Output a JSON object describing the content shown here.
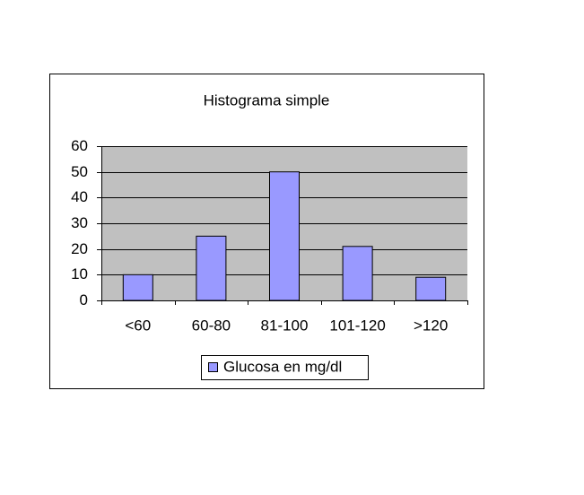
{
  "chart_data": {
    "type": "bar",
    "title": "Histograma simple",
    "categories": [
      "<60",
      "60-80",
      "81-100",
      "101-120",
      ">120"
    ],
    "series": [
      {
        "name": "Glucosa en mg/dl",
        "color": "#9999ff",
        "values": [
          10,
          25,
          50,
          21,
          9
        ]
      }
    ],
    "ylim": [
      0,
      60
    ],
    "yticks": [
      0,
      10,
      20,
      30,
      40,
      50,
      60
    ],
    "grid": true,
    "legend": "bottom"
  }
}
